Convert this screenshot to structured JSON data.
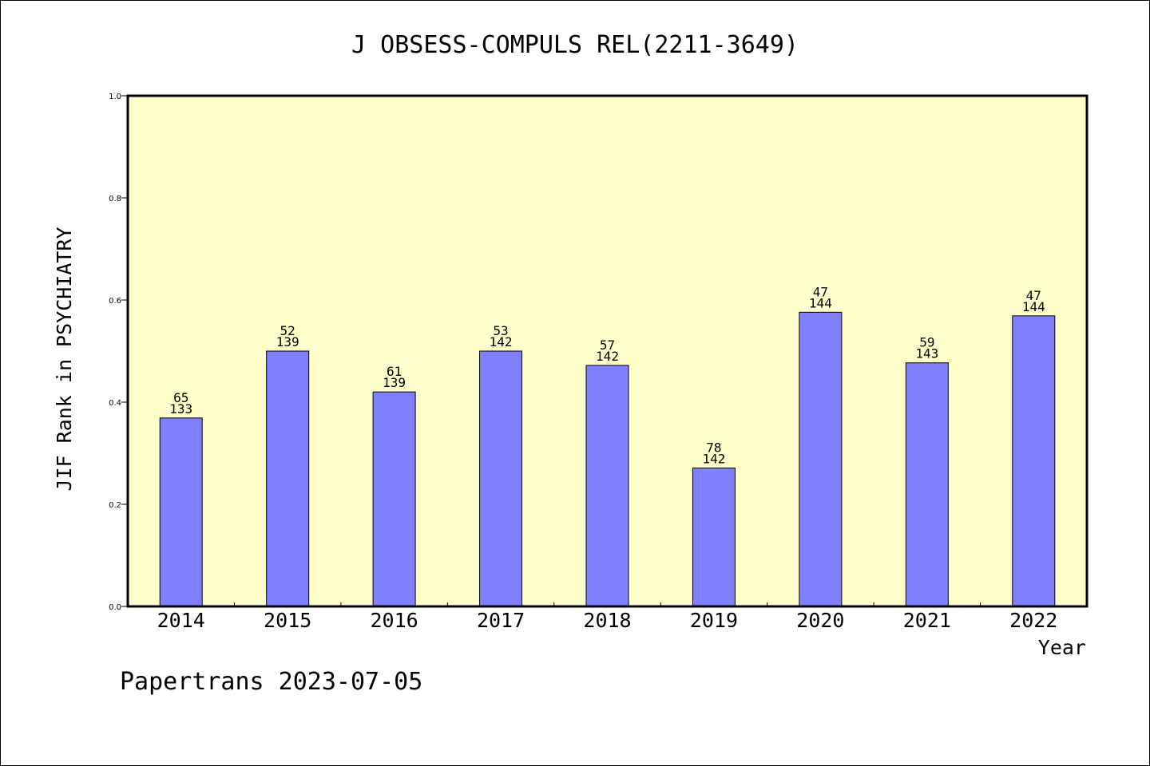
{
  "chart_data": {
    "type": "bar",
    "title": "J OBSESS-COMPULS REL(2211-3649)",
    "xlabel": "Year",
    "ylabel": "JIF Rank in PSYCHIATRY",
    "ylim": [
      0,
      1.0
    ],
    "yticks": [
      "0.0",
      "0.2",
      "0.4",
      "0.6",
      "0.8",
      "1.0"
    ],
    "categories": [
      "2014",
      "2015",
      "2016",
      "2017",
      "2018",
      "2019",
      "2020",
      "2021",
      "2022"
    ],
    "values": [
      0.369,
      0.5,
      0.42,
      0.5,
      0.472,
      0.271,
      0.576,
      0.477,
      0.569
    ],
    "rank_labels": [
      "65",
      "52",
      "61",
      "53",
      "57",
      "78",
      "47",
      "59",
      "47"
    ],
    "total_labels": [
      "133",
      "139",
      "139",
      "142",
      "142",
      "142",
      "144",
      "143",
      "144"
    ],
    "grid": false,
    "colors": {
      "plot_bg": "#ffffcc",
      "bar": "#8080ff"
    }
  },
  "footer": {
    "credit": "Papertrans 2023-07-05"
  }
}
